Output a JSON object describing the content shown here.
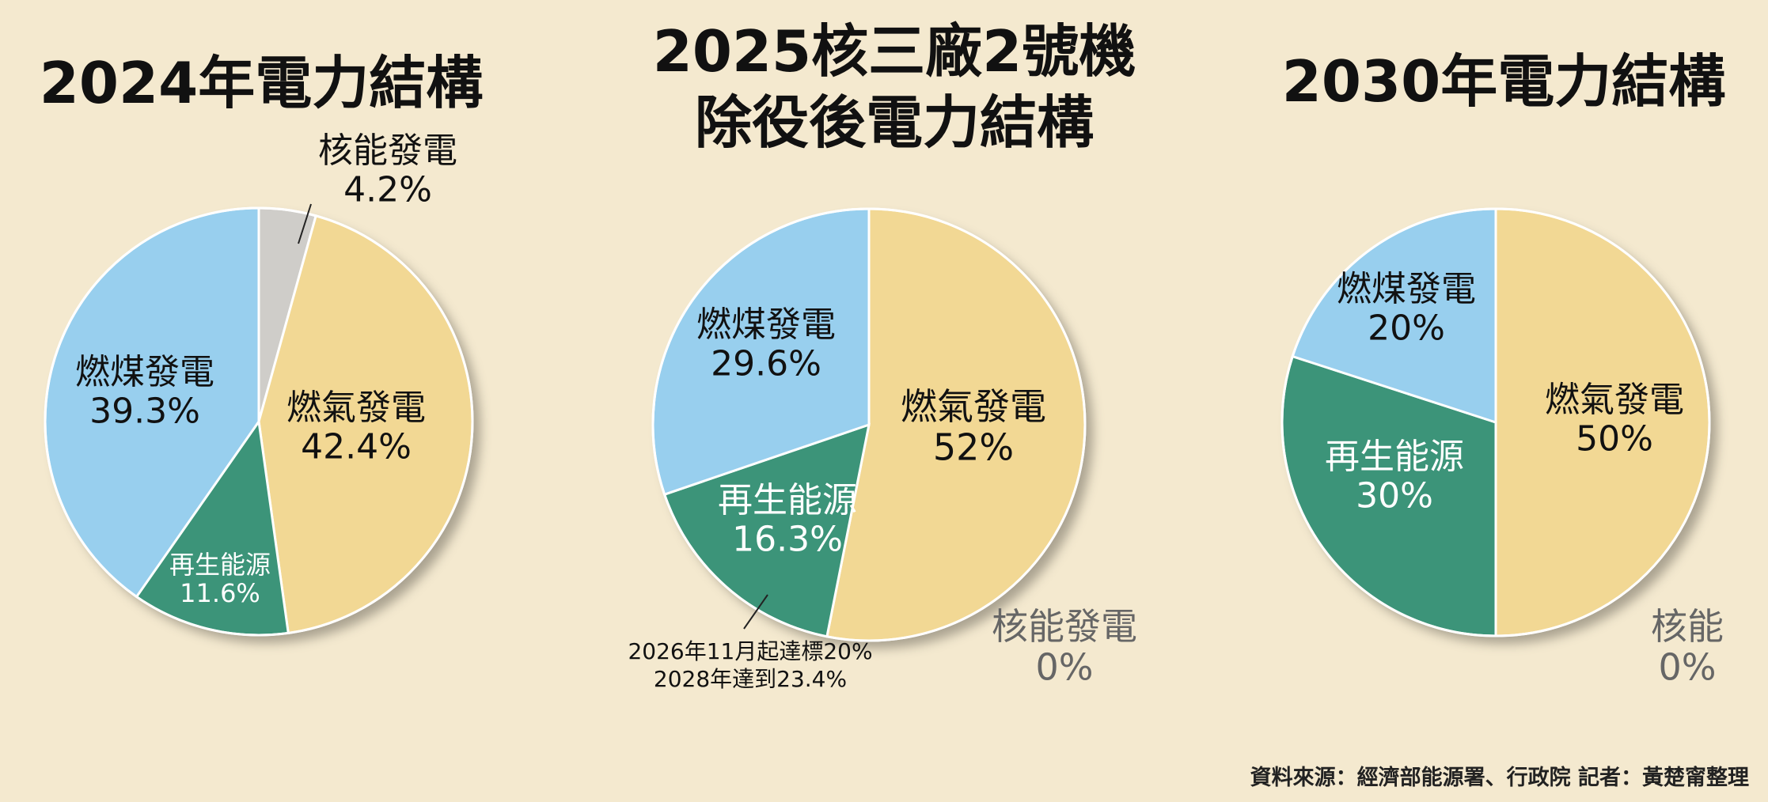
{
  "titles": {
    "t2024": "2024年電力結構",
    "t2025_line1": "2025核三廠2號機",
    "t2025_line2": "除役後電力結構",
    "t2030": "2030年電力結構"
  },
  "source": "資料來源：經濟部能源署、行政院 記者：黃楚甯整理",
  "colors": {
    "gas": "#f2d894",
    "coal": "#98cfee",
    "renewable": "#3c9479",
    "nuclear": "#cfcdc9",
    "background": "#f4e9cf"
  },
  "chart_data": [
    {
      "type": "pie",
      "title": "2024年電力結構",
      "series": [
        {
          "name": "核能發電",
          "value": 4.2,
          "label": "4.2%"
        },
        {
          "name": "燃氣發電",
          "value": 42.4,
          "label": "42.4%"
        },
        {
          "name": "再生能源",
          "value": 11.6,
          "label": "11.6%"
        },
        {
          "name": "燃煤發電",
          "value": 39.3,
          "label": "39.3%"
        }
      ]
    },
    {
      "type": "pie",
      "title": "2025核三廠2號機除役後電力結構",
      "series": [
        {
          "name": "核能發電",
          "value": 0,
          "label": "0%"
        },
        {
          "name": "燃氣發電",
          "value": 52,
          "label": "52%"
        },
        {
          "name": "再生能源",
          "value": 16.3,
          "label": "16.3%"
        },
        {
          "name": "燃煤發電",
          "value": 29.6,
          "label": "29.6%"
        }
      ],
      "annotation": [
        "2026年11月起達標20%",
        "2028年達到23.4%"
      ]
    },
    {
      "type": "pie",
      "title": "2030年電力結構",
      "series": [
        {
          "name": "核能",
          "value": 0,
          "label": "0%"
        },
        {
          "name": "燃氣發電",
          "value": 50,
          "label": "50%"
        },
        {
          "name": "再生能源",
          "value": 30,
          "label": "30%"
        },
        {
          "name": "燃煤發電",
          "value": 20,
          "label": "20%"
        }
      ]
    }
  ]
}
